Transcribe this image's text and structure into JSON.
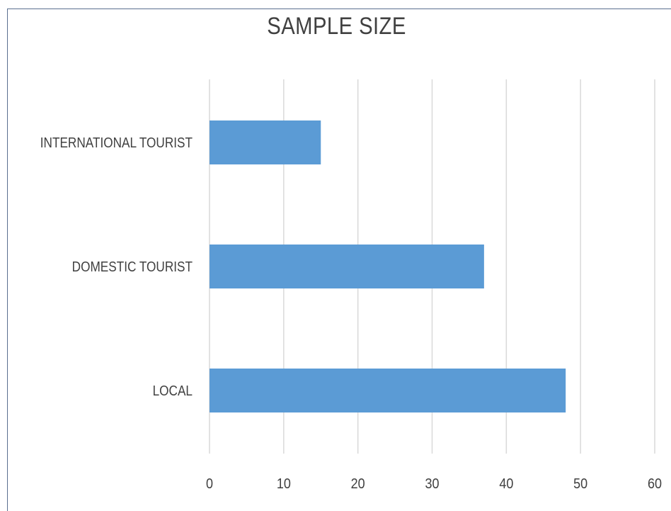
{
  "chart_data": {
    "type": "bar",
    "orientation": "horizontal",
    "title": "SAMPLE SIZE",
    "xlabel": "",
    "ylabel": "",
    "categories": [
      "INTERNATIONAL TOURIST",
      "DOMESTIC TOURIST",
      "LOCAL"
    ],
    "values": [
      15,
      37,
      48
    ],
    "xlim": [
      0,
      60
    ],
    "x_ticks": [
      "0",
      "10",
      "20",
      "30",
      "40",
      "50",
      "60"
    ],
    "grid": true,
    "legend": "none",
    "bar_color": "#5b9bd5",
    "grid_color": "#d9d9d9"
  }
}
